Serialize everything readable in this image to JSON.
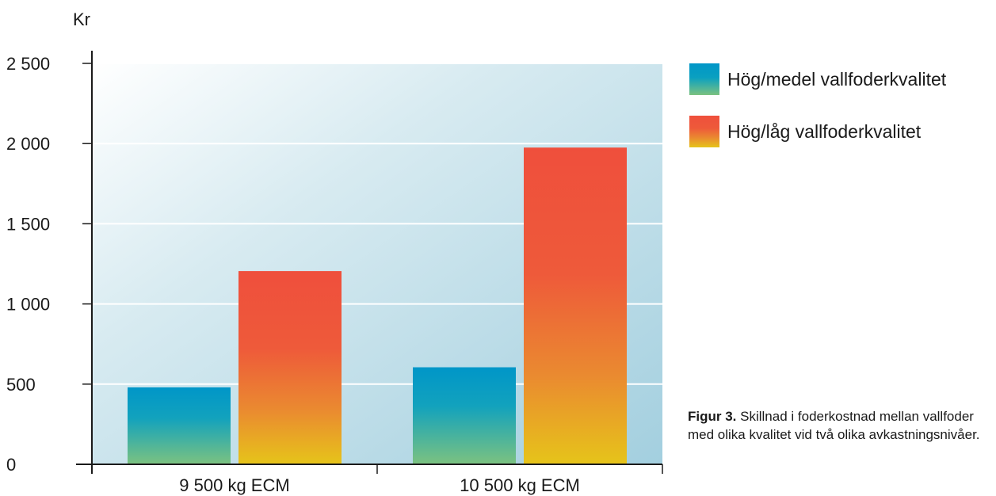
{
  "chart_data": {
    "type": "bar",
    "title": "",
    "ylabel": "Kr",
    "xlabel": "",
    "categories": [
      "9 500 kg ECM",
      "10 500 kg ECM"
    ],
    "series": [
      {
        "name": "Hög/medel vallfoderkvalitet",
        "values": [
          480,
          605
        ]
      },
      {
        "name": "Hög/låg vallfoderkvalitet",
        "values": [
          1205,
          1975
        ]
      }
    ],
    "ylim": [
      0,
      2500
    ],
    "yticks": [
      0,
      500,
      1000,
      1500,
      2000,
      2500
    ],
    "ytick_labels": [
      "0",
      "500",
      "1 000",
      "1 500",
      "2 000",
      "2 500"
    ],
    "grid": true,
    "legend_position": "right"
  },
  "colors": {
    "series_a_top": "#0096c8",
    "series_a_bottom": "#7cc280",
    "series_b_top": "#ef4f3c",
    "series_b_bottom": "#e6c41a",
    "plot_bg_left": "#f4f9fb",
    "plot_bg_right": "#a9d2e1"
  },
  "caption": {
    "title": "Figur 3.",
    "text": " Skillnad i foderkostnad mellan vallfoder med olika kvalitet vid två olika avkastningsnivåer."
  }
}
